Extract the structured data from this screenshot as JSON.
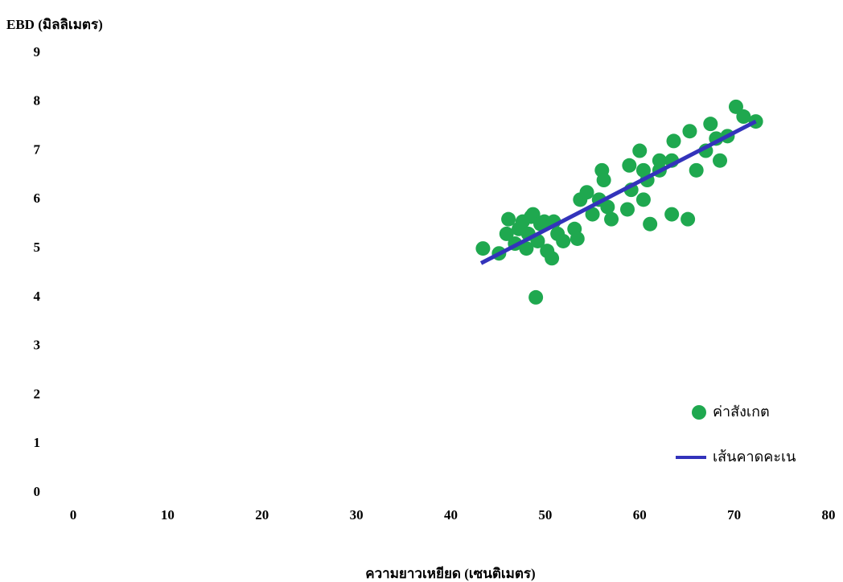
{
  "chart_data": {
    "type": "scatter",
    "title": "EBD (มิลลิเมตร)",
    "x_label": "ความยาวเหยียด (เซนติเมตร)",
    "xlim": [
      0,
      80
    ],
    "xticks": [
      0,
      10,
      20,
      30,
      40,
      50,
      60,
      70,
      80
    ],
    "ylim": [
      0,
      9
    ],
    "yticks": [
      0,
      1,
      2,
      3,
      4,
      5,
      6,
      7,
      8,
      9
    ],
    "grid": false,
    "legend": "right",
    "series": [
      {
        "name": "ค่าสังเกต",
        "type": "scatter",
        "color": "#1fa84f",
        "x": [
          43.4,
          45.1,
          45.9,
          46.1,
          46.8,
          47.2,
          47.6,
          48.0,
          48.2,
          48.5,
          48.7,
          49.0,
          49.2,
          49.5,
          49.9,
          50.2,
          50.7,
          50.9,
          51.3,
          51.9,
          53.1,
          53.4,
          53.7,
          54.4,
          55.0,
          55.7,
          56.0,
          56.2,
          56.6,
          57.0,
          58.7,
          58.9,
          59.1,
          60.0,
          60.4,
          60.4,
          60.8,
          61.1,
          62.1,
          62.1,
          63.4,
          63.6,
          63.4,
          65.1,
          65.3,
          66.0,
          67.0,
          67.5,
          68.1,
          68.5,
          69.3,
          70.2,
          71.0,
          72.3
        ],
        "values": [
          5.0,
          4.9,
          5.3,
          5.6,
          5.1,
          5.4,
          5.55,
          5.0,
          5.3,
          5.65,
          5.7,
          4.0,
          5.15,
          5.5,
          5.55,
          4.95,
          4.8,
          5.55,
          5.3,
          5.15,
          5.4,
          5.2,
          6.0,
          6.15,
          5.7,
          6.0,
          6.6,
          6.4,
          5.85,
          5.6,
          5.8,
          6.7,
          6.2,
          7.0,
          6.0,
          6.6,
          6.4,
          5.5,
          6.8,
          6.6,
          5.7,
          7.2,
          6.8,
          5.6,
          7.4,
          6.6,
          7.0,
          7.55,
          7.25,
          6.8,
          7.3,
          7.9,
          7.7,
          7.6
        ]
      },
      {
        "name": "เส้นคาดคะเน",
        "type": "line",
        "color": "#3333bb",
        "x": [
          43.2,
          72.3
        ],
        "values": [
          4.7,
          7.6
        ]
      }
    ]
  }
}
